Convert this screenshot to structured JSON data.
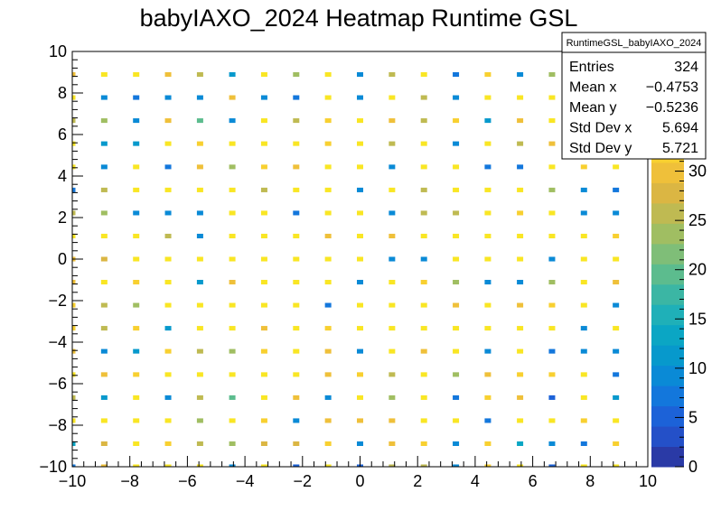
{
  "chart_data": {
    "type": "heatmap",
    "title": "babyIAXO_2024 Heatmap Runtime GSL",
    "xlabel": "",
    "ylabel": "",
    "xlim": [
      -10,
      10
    ],
    "ylim": [
      -10,
      10
    ],
    "zlim": [
      0,
      35
    ],
    "grid": false,
    "x_ticks": [
      -10,
      -8,
      -6,
      -4,
      -2,
      0,
      2,
      4,
      6,
      8,
      10
    ],
    "y_ticks": [
      -10,
      -8,
      -6,
      -4,
      -2,
      0,
      2,
      4,
      6,
      8,
      10
    ],
    "x_tick_labels": [
      "−10",
      "−8",
      "−6",
      "−4",
      "−2",
      "0",
      "2",
      "4",
      "6",
      "8",
      "10"
    ],
    "y_tick_labels": [
      "−10",
      "−8",
      "−6",
      "−4",
      "−2",
      "0",
      "2",
      "4",
      "6",
      "8",
      "10"
    ],
    "z_ticks": [
      0,
      5,
      10,
      15,
      20,
      25,
      30
    ],
    "z_tick_labels": [
      "0",
      "5",
      "10",
      "15",
      "20",
      "25",
      "30"
    ],
    "x_centers": [
      -10,
      -8.89,
      -7.78,
      -6.67,
      -5.56,
      -4.44,
      -3.33,
      -2.22,
      -1.11,
      0,
      1.11,
      2.22,
      3.33,
      4.44,
      5.56,
      6.67,
      7.78,
      8.89
    ],
    "y_centers": [
      -10,
      -8.89,
      -7.78,
      -6.67,
      -5.56,
      -4.44,
      -3.33,
      -2.22,
      -1.11,
      0,
      1.11,
      2.22,
      3.33,
      4.44,
      5.56,
      6.67,
      7.78,
      8.89
    ],
    "cell_width": 0.22,
    "cell_height": 0.22,
    "values": [
      [
        8,
        30,
        34,
        34,
        33,
        9,
        34,
        6,
        34,
        6,
        26,
        26,
        9,
        31,
        34,
        6,
        34,
        34
      ],
      [
        14,
        28,
        34,
        31,
        26,
        23,
        28,
        27,
        31,
        10,
        30,
        31,
        10,
        31,
        14,
        9,
        8,
        31
      ],
      [
        33,
        34,
        34,
        33,
        24,
        34,
        31,
        10,
        30,
        29,
        29,
        34,
        34,
        8,
        33,
        34,
        31,
        34
      ],
      [
        26,
        12,
        34,
        9,
        26,
        20,
        34,
        30,
        9,
        33,
        24,
        34,
        8,
        31,
        30,
        6,
        34,
        12
      ],
      [
        33,
        30,
        31,
        34,
        34,
        34,
        34,
        34,
        30,
        31,
        26,
        33,
        24,
        30,
        31,
        31,
        34,
        7
      ],
      [
        29,
        9,
        12,
        31,
        26,
        23,
        31,
        34,
        30,
        10,
        34,
        30,
        34,
        9,
        34,
        8,
        10,
        9
      ],
      [
        32,
        26,
        31,
        12,
        34,
        34,
        30,
        34,
        31,
        34,
        34,
        34,
        34,
        34,
        34,
        34,
        9,
        34
      ],
      [
        31,
        26,
        24,
        34,
        34,
        34,
        33,
        34,
        7,
        33,
        34,
        34,
        30,
        33,
        30,
        31,
        34,
        9
      ],
      [
        30,
        34,
        31,
        34,
        12,
        29,
        34,
        34,
        34,
        10,
        33,
        31,
        24,
        9,
        10,
        24,
        34,
        30
      ],
      [
        30,
        28,
        34,
        34,
        33,
        34,
        34,
        33,
        34,
        34,
        10,
        10,
        34,
        34,
        34,
        10,
        34,
        34
      ],
      [
        34,
        34,
        34,
        26,
        10,
        33,
        34,
        34,
        30,
        34,
        30,
        34,
        33,
        34,
        34,
        34,
        34,
        31
      ],
      [
        26,
        24,
        10,
        10,
        10,
        34,
        34,
        8,
        34,
        34,
        10,
        26,
        26,
        34,
        31,
        34,
        10,
        10
      ],
      [
        7,
        26,
        34,
        34,
        34,
        34,
        26,
        34,
        34,
        9,
        34,
        26,
        34,
        34,
        34,
        24,
        10,
        8
      ],
      [
        34,
        10,
        33,
        8,
        29,
        23,
        31,
        30,
        33,
        33,
        10,
        34,
        34,
        8,
        8,
        33,
        31,
        34
      ],
      [
        34,
        12,
        12,
        34,
        31,
        34,
        34,
        33,
        31,
        33,
        26,
        34,
        10,
        33,
        26,
        30,
        34,
        34
      ],
      [
        26,
        24,
        10,
        30,
        20,
        9,
        34,
        26,
        31,
        33,
        30,
        26,
        31,
        12,
        30,
        34,
        12,
        34
      ],
      [
        34,
        10,
        8,
        9,
        10,
        30,
        9,
        8,
        34,
        10,
        34,
        26,
        9,
        34,
        34,
        33,
        34,
        34
      ],
      [
        30,
        34,
        34,
        30,
        26,
        12,
        34,
        24,
        34,
        9,
        26,
        34,
        7,
        31,
        9,
        24,
        34,
        34
      ]
    ],
    "stats": {
      "name": "RuntimeGSL_babyIAXO_2024",
      "rows": [
        {
          "label": "Entries",
          "value": "324"
        },
        {
          "label": "Mean x",
          "value": "−0.4753"
        },
        {
          "label": "Mean y",
          "value": "−0.5236"
        },
        {
          "label": "Std Dev x",
          "value": "5.694"
        },
        {
          "label": "Std Dev y",
          "value": "5.721"
        }
      ]
    },
    "palette": [
      "#2a3aa6",
      "#2450c8",
      "#1c62d8",
      "#1377dc",
      "#0a8ad6",
      "#0799cc",
      "#0ba6c4",
      "#1fb0b8",
      "#3bb6a4",
      "#5cbc8e",
      "#7fbe78",
      "#a0be62",
      "#bfba52",
      "#dbb643",
      "#efc03a",
      "#f8d030",
      "#f9e624"
    ]
  }
}
